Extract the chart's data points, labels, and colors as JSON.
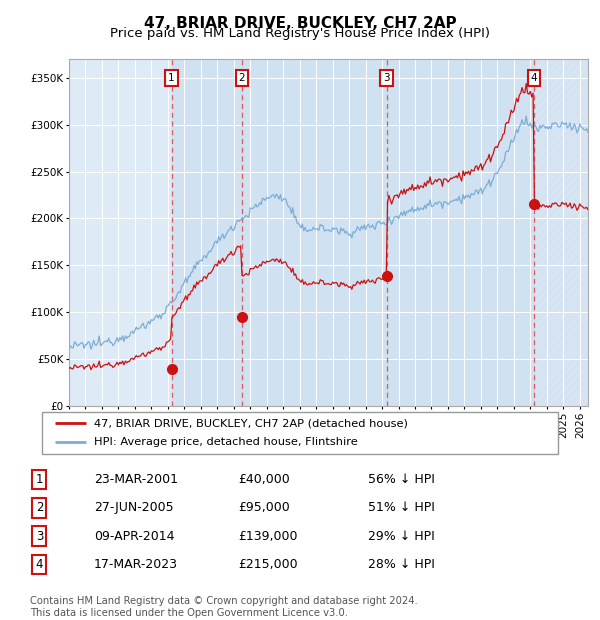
{
  "title": "47, BRIAR DRIVE, BUCKLEY, CH7 2AP",
  "subtitle": "Price paid vs. HM Land Registry's House Price Index (HPI)",
  "xlim_start": 1995.0,
  "xlim_end": 2026.5,
  "ylim": [
    0,
    370000
  ],
  "yticks": [
    0,
    50000,
    100000,
    150000,
    200000,
    250000,
    300000,
    350000
  ],
  "ytick_labels": [
    "£0",
    "£50K",
    "£100K",
    "£150K",
    "£200K",
    "£250K",
    "£300K",
    "£350K"
  ],
  "hpi_color": "#7dadd4",
  "price_color": "#cc1111",
  "bg_color": "#deeaf5",
  "sale_dates": [
    2001.226,
    2005.49,
    2014.274,
    2023.208
  ],
  "sale_prices": [
    40000,
    95000,
    139000,
    215000
  ],
  "sale_labels": [
    "1",
    "2",
    "3",
    "4"
  ],
  "legend_price_label": "47, BRIAR DRIVE, BUCKLEY, CH7 2AP (detached house)",
  "legend_hpi_label": "HPI: Average price, detached house, Flintshire",
  "table_rows": [
    [
      "1",
      "23-MAR-2001",
      "£40,000",
      "56% ↓ HPI"
    ],
    [
      "2",
      "27-JUN-2005",
      "£95,000",
      "51% ↓ HPI"
    ],
    [
      "3",
      "09-APR-2014",
      "£139,000",
      "29% ↓ HPI"
    ],
    [
      "4",
      "17-MAR-2023",
      "£215,000",
      "28% ↓ HPI"
    ]
  ],
  "footnote": "Contains HM Land Registry data © Crown copyright and database right 2024.\nThis data is licensed under the Open Government Licence v3.0.",
  "title_fontsize": 11,
  "subtitle_fontsize": 9.5,
  "tick_fontsize": 7.5,
  "label_fontsize": 9
}
